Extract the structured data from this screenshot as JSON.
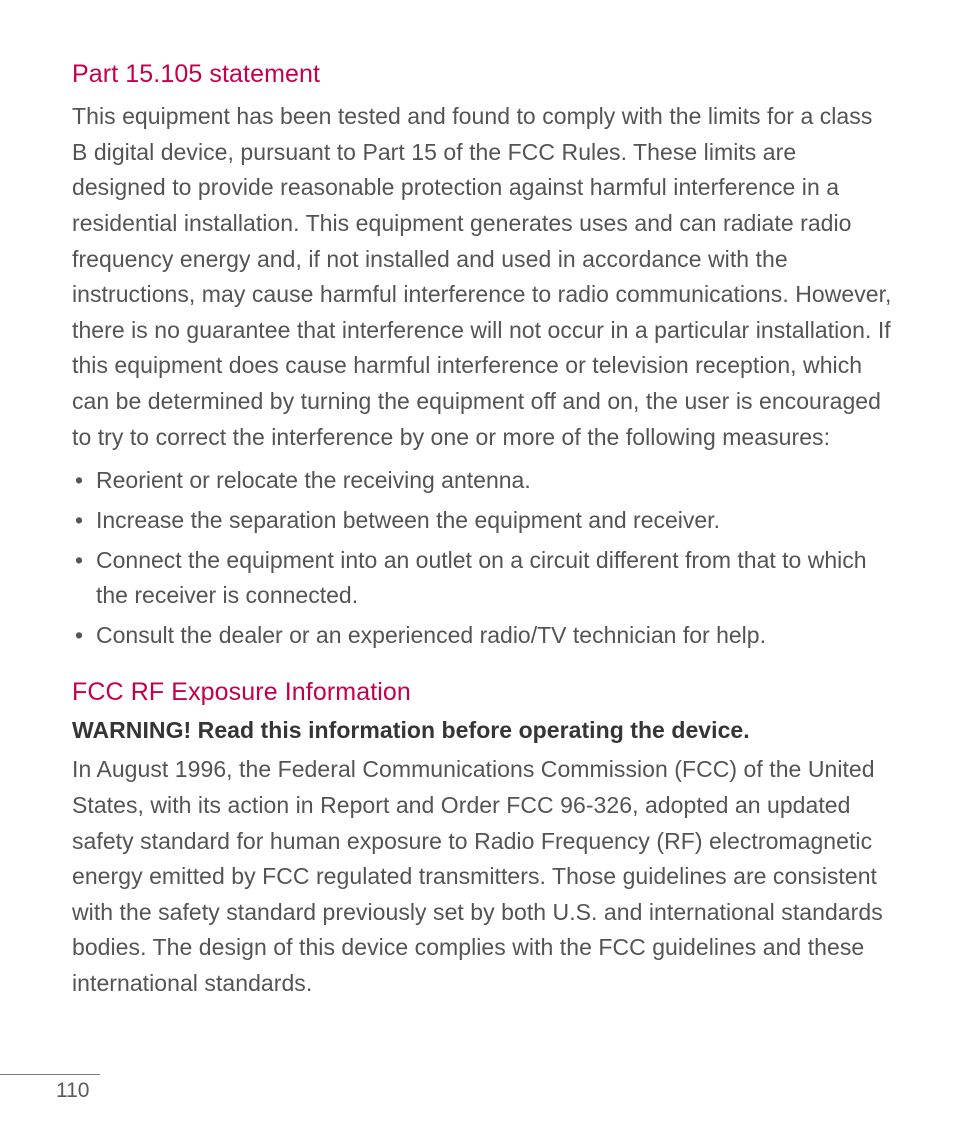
{
  "page": {
    "number": "110",
    "background_color": "#ffffff",
    "text_color": "#545454",
    "heading_color": "#c4004d",
    "warning_color": "#353535",
    "body_fontsize": 23,
    "heading_fontsize": 25,
    "line_height": 1.55
  },
  "section1": {
    "title": "Part 15.105 statement",
    "paragraph": "This equipment has been tested and found to comply with the limits for a class B digital device, pursuant to Part 15 of the FCC Rules. These limits are designed to provide reasonable protection against harmful interference in a residential installation. This equipment generates uses and can radiate radio frequency energy and, if not installed and used in accordance with the instructions, may cause harmful interference to radio communications. However, there is no guarantee that interference will not occur in a particular installation. If this equipment does cause harmful interference or television reception, which can be determined by turning the equipment off and on, the user is encouraged to try to correct the interference by one or more of the following measures:",
    "bullets": [
      "Reorient or relocate the receiving antenna.",
      "Increase the separation between the equipment and receiver.",
      "Connect the equipment into an outlet on a circuit different from that to which the receiver is connected.",
      "Consult the dealer or an experienced radio/TV technician for help."
    ]
  },
  "section2": {
    "title": "FCC RF Exposure Information",
    "warning": "WARNING! Read this information before operating the device.",
    "paragraph": "In August 1996, the Federal Communications Commission (FCC) of the United States, with its action in Report and Order FCC 96-326, adopted an updated safety standard for human exposure to Radio Frequency (RF) electromagnetic energy emitted by FCC regulated transmitters. Those guidelines are consistent with the safety standard previously set by both U.S. and international standards bodies. The design of this device complies with the FCC guidelines and these international standards."
  }
}
